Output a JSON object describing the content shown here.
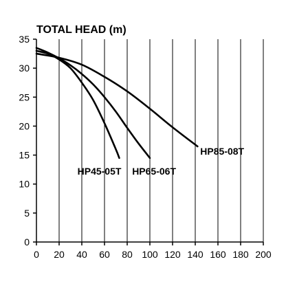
{
  "chart_data": {
    "type": "line",
    "title": "TOTAL HEAD (m)",
    "xlabel": "",
    "ylabel": "",
    "xlim": [
      0,
      200
    ],
    "ylim": [
      0,
      35
    ],
    "x_ticks": [
      0,
      20,
      40,
      60,
      80,
      100,
      120,
      140,
      160,
      180,
      200
    ],
    "y_ticks": [
      0,
      5,
      10,
      15,
      20,
      25,
      30,
      35
    ],
    "grid": "vertical",
    "series": [
      {
        "name": "HP45-05T",
        "x": [
          0,
          10,
          20,
          30,
          40,
          50,
          60,
          70,
          73
        ],
        "y": [
          33.0,
          32.5,
          31.5,
          30.0,
          27.5,
          24.5,
          20.5,
          16.0,
          14.5
        ]
      },
      {
        "name": "HP65-06T",
        "x": [
          0,
          10,
          20,
          30,
          40,
          50,
          60,
          70,
          80,
          90,
          100
        ],
        "y": [
          33.5,
          32.7,
          31.7,
          30.5,
          29.0,
          27.2,
          25.0,
          22.5,
          19.7,
          17.0,
          14.5
        ]
      },
      {
        "name": "HP85-08T",
        "x": [
          0,
          20,
          40,
          60,
          80,
          100,
          120,
          142
        ],
        "y": [
          32.5,
          31.8,
          30.6,
          28.5,
          26.0,
          23.0,
          19.8,
          16.5
        ]
      }
    ]
  }
}
